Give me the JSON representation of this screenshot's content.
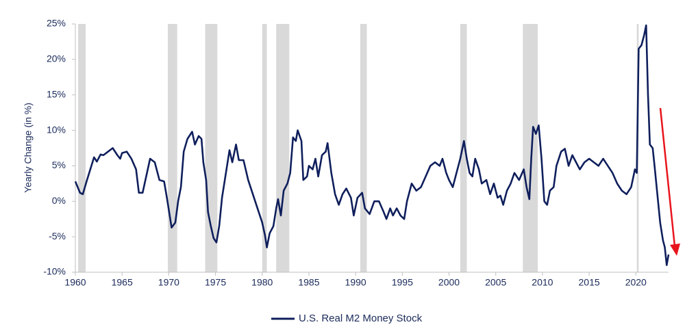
{
  "chart_data": {
    "type": "line",
    "y_label": "Yearly Change (in %)",
    "xlim": [
      1960,
      2023.5
    ],
    "xticks": [
      1960,
      1965,
      1970,
      1975,
      1980,
      1985,
      1990,
      1995,
      2000,
      2005,
      2010,
      2015,
      2020
    ],
    "ylim": [
      -10,
      25
    ],
    "yticks": [
      {
        "value": -10,
        "label": "-10%"
      },
      {
        "value": -5,
        "label": "-5%"
      },
      {
        "value": 0,
        "label": "0%"
      },
      {
        "value": 5,
        "label": "5%"
      },
      {
        "value": 10,
        "label": "10%"
      },
      {
        "value": 15,
        "label": "15%"
      },
      {
        "value": 20,
        "label": "20%"
      },
      {
        "value": 25,
        "label": "25%"
      }
    ],
    "recessions": [
      [
        1960.3,
        1961.1
      ],
      [
        1969.9,
        1970.9
      ],
      [
        1973.9,
        1975.2
      ],
      [
        1980.0,
        1980.5
      ],
      [
        1981.5,
        1982.9
      ],
      [
        1990.5,
        1991.2
      ],
      [
        2001.2,
        2001.9
      ],
      [
        2007.9,
        2009.5
      ],
      [
        2020.1,
        2020.3
      ]
    ],
    "recession_color": "#d9d9d9",
    "x": [
      1960,
      1960.5,
      1960.8,
      1961.2,
      1961.6,
      1962,
      1962.3,
      1962.7,
      1963,
      1963.5,
      1964,
      1964.5,
      1964.8,
      1965,
      1965.5,
      1966,
      1966.5,
      1966.8,
      1967.2,
      1967.5,
      1968,
      1968.5,
      1969,
      1969.5,
      1969.8,
      1970.1,
      1970.3,
      1970.7,
      1971,
      1971.3,
      1971.6,
      1972,
      1972.5,
      1972.8,
      1973.2,
      1973.5,
      1973.7,
      1974,
      1974.2,
      1974.5,
      1974.8,
      1975.1,
      1975.4,
      1975.7,
      1976,
      1976.5,
      1976.8,
      1977.2,
      1977.5,
      1978,
      1978.5,
      1979,
      1979.5,
      1980,
      1980.3,
      1980.5,
      1980.8,
      1981.2,
      1981.5,
      1981.7,
      1982,
      1982.3,
      1982.7,
      1983,
      1983.3,
      1983.6,
      1983.8,
      1984.2,
      1984.4,
      1984.8,
      1985,
      1985.4,
      1985.7,
      1986,
      1986.4,
      1986.8,
      1987,
      1987.4,
      1987.8,
      1988.2,
      1988.6,
      1989,
      1989.5,
      1989.8,
      1990.2,
      1990.7,
      1991,
      1991.5,
      1992,
      1992.5,
      1993,
      1993.3,
      1993.7,
      1994,
      1994.4,
      1994.8,
      1995.2,
      1995.5,
      1996,
      1996.5,
      1997,
      1997.5,
      1998,
      1998.5,
      1999,
      1999.3,
      1999.7,
      2000,
      2000.4,
      2000.8,
      2001.2,
      2001.6,
      2001.9,
      2002.2,
      2002.5,
      2002.8,
      2003.2,
      2003.5,
      2004,
      2004.4,
      2004.8,
      2005.2,
      2005.5,
      2005.8,
      2006.2,
      2006.6,
      2007,
      2007.5,
      2008,
      2008.3,
      2008.6,
      2008.8,
      2009,
      2009.3,
      2009.6,
      2009.9,
      2010.2,
      2010.5,
      2010.8,
      2011.2,
      2011.5,
      2012,
      2012.4,
      2012.8,
      2013.2,
      2013.6,
      2014,
      2014.5,
      2015,
      2015.5,
      2016,
      2016.5,
      2017,
      2017.5,
      2018,
      2018.5,
      2019,
      2019.5,
      2019.9,
      2020.1,
      2020.3,
      2020.6,
      2020.9,
      2021.1,
      2021.3,
      2021.5,
      2021.8,
      2022,
      2022.3,
      2022.6,
      2022.9,
      2023.1,
      2023.3,
      2023.5
    ],
    "series": [
      {
        "name": "U.S. Real M2 Money Stock",
        "color": "#0f1f5c",
        "values": [
          2.8,
          1.2,
          1.0,
          2.8,
          4.5,
          6.2,
          5.6,
          6.6,
          6.5,
          7.0,
          7.5,
          6.5,
          6.0,
          6.8,
          7.0,
          6.0,
          4.5,
          1.2,
          1.2,
          3.0,
          6.0,
          5.5,
          3.0,
          2.8,
          0.5,
          -2.0,
          -3.7,
          -3.0,
          0,
          2.0,
          7.0,
          8.8,
          9.8,
          8.0,
          9.2,
          8.8,
          5.5,
          3.0,
          -1.5,
          -3.5,
          -5.2,
          -5.8,
          -3.5,
          0.5,
          3.0,
          7.2,
          5.5,
          8.0,
          5.8,
          5.8,
          3.0,
          1.0,
          -1.0,
          -3.0,
          -4.8,
          -6.5,
          -4.5,
          -3.5,
          -1.0,
          0.3,
          -2.0,
          1.5,
          2.5,
          4.0,
          9.0,
          8.5,
          10.0,
          8.5,
          3.0,
          3.5,
          5.0,
          4.5,
          6.0,
          3.5,
          6.5,
          7.0,
          8.2,
          4.0,
          1.0,
          -0.5,
          1.0,
          1.8,
          0.5,
          -2.0,
          0.5,
          1.2,
          -1.0,
          -1.8,
          0.0,
          0.0,
          -1.5,
          -2.5,
          -1.0,
          -2.0,
          -1.0,
          -2.0,
          -2.5,
          0.0,
          2.5,
          1.5,
          2.0,
          3.5,
          5.0,
          5.5,
          5.0,
          6.0,
          4.0,
          3.0,
          2.0,
          4.0,
          6.0,
          8.5,
          6.0,
          4.0,
          3.5,
          6.0,
          4.5,
          2.5,
          3.0,
          1.0,
          2.5,
          0.5,
          0.8,
          -0.5,
          1.5,
          2.5,
          4.0,
          3.0,
          4.5,
          2.0,
          0.3,
          6.0,
          10.5,
          9.5,
          10.7,
          6.0,
          0.0,
          -0.5,
          1.5,
          2.0,
          5.0,
          7.0,
          7.4,
          5.0,
          6.5,
          5.5,
          4.5,
          5.5,
          6.0,
          5.5,
          5.0,
          6.0,
          5.0,
          4.0,
          2.5,
          1.5,
          1.0,
          2.0,
          4.5,
          4.0,
          21.5,
          22.0,
          23.5,
          24.8,
          15.0,
          8.0,
          7.5,
          5.0,
          1.0,
          -3.0,
          -5.5,
          -6.5,
          -9.0,
          -7.5
        ]
      }
    ],
    "legend": "bottom"
  }
}
